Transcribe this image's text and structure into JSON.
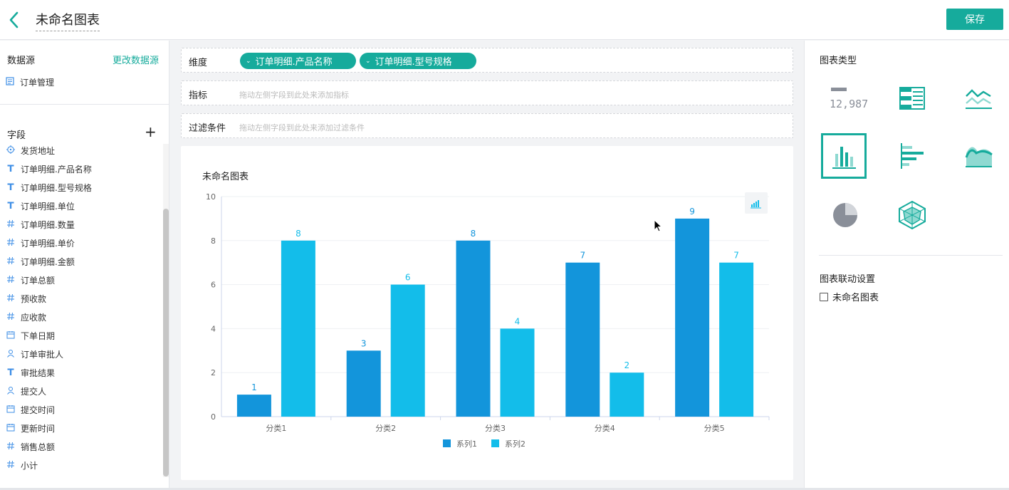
{
  "header": {
    "title": "未命名图表",
    "save_label": "保存"
  },
  "datasource": {
    "label": "数据源",
    "change_label": "更改数据源",
    "item": "订单管理"
  },
  "fields": {
    "label": "字段",
    "items": [
      {
        "icon": "location-icon",
        "label": "发货地址"
      },
      {
        "icon": "text-type-icon",
        "label": "订单明细.产品名称"
      },
      {
        "icon": "text-type-icon",
        "label": "订单明细.型号规格"
      },
      {
        "icon": "text-type-icon",
        "label": "订单明细.单位"
      },
      {
        "icon": "number-type-icon",
        "label": "订单明细.数量"
      },
      {
        "icon": "number-type-icon",
        "label": "订单明细.单价"
      },
      {
        "icon": "number-type-icon",
        "label": "订单明细.金额"
      },
      {
        "icon": "number-type-icon",
        "label": "订单总额"
      },
      {
        "icon": "number-type-icon",
        "label": "预收款"
      },
      {
        "icon": "number-type-icon",
        "label": "应收款"
      },
      {
        "icon": "calendar-icon",
        "label": "下单日期"
      },
      {
        "icon": "user-icon",
        "label": "订单审批人"
      },
      {
        "icon": "text-type-icon",
        "label": "审批结果"
      },
      {
        "icon": "user-icon",
        "label": "提交人"
      },
      {
        "icon": "calendar-icon",
        "label": "提交时间"
      },
      {
        "icon": "calendar-icon",
        "label": "更新时间"
      },
      {
        "icon": "number-type-icon",
        "label": "销售总额"
      },
      {
        "icon": "number-type-icon",
        "label": "小计"
      }
    ]
  },
  "config": {
    "dimension_label": "维度",
    "dimension_pills": [
      "订单明细.产品名称",
      "订单明细.型号规格"
    ],
    "metric_label": "指标",
    "metric_hint": "拖动左侧字段到此处来添加指标",
    "filter_label": "过滤条件",
    "filter_hint": "拖动左侧字段到此处来添加过滤条件"
  },
  "chart_data": {
    "type": "bar",
    "title": "未命名图表",
    "categories": [
      "分类1",
      "分类2",
      "分类3",
      "分类4",
      "分类5"
    ],
    "series": [
      {
        "name": "系列1",
        "values": [
          1,
          3,
          8,
          7,
          9
        ],
        "color": "#1395db"
      },
      {
        "name": "系列2",
        "values": [
          8,
          6,
          4,
          2,
          7
        ],
        "color": "#13bdea"
      }
    ],
    "ylim": [
      0,
      10
    ],
    "yticks": [
      "0",
      "2",
      "4",
      "6",
      "8",
      "10"
    ],
    "grid": true,
    "legend": "bottom"
  },
  "right_panel": {
    "chart_type_label": "图表类型",
    "number_sample": "12,987",
    "chart_types": [
      "number-card",
      "table",
      "line",
      "bar",
      "horizontal-bar",
      "area",
      "pie",
      "radar"
    ],
    "selected": "bar",
    "linkage_label": "图表联动设置",
    "linkage_item": "未命名图表"
  },
  "colors": {
    "accent": "#16ab9c",
    "series1": "#1395db",
    "series2": "#13bdea"
  }
}
